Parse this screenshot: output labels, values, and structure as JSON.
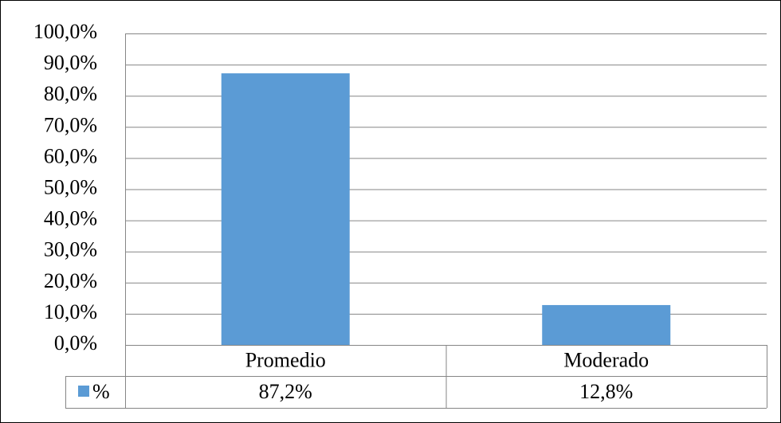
{
  "chart_data": {
    "type": "bar",
    "categories": [
      "Promedio",
      "Moderado"
    ],
    "series": [
      {
        "name": "%",
        "color": "#5b9bd5",
        "values": [
          87.2,
          12.8
        ],
        "value_labels": [
          "87,2%",
          "12,8%"
        ]
      }
    ],
    "ylim": [
      0,
      100
    ],
    "yticks": [
      {
        "value": 0,
        "label": "0,0%"
      },
      {
        "value": 10,
        "label": "10,0%"
      },
      {
        "value": 20,
        "label": "20,0%"
      },
      {
        "value": 30,
        "label": "30,0%"
      },
      {
        "value": 40,
        "label": "40,0%"
      },
      {
        "value": 50,
        "label": "50,0%"
      },
      {
        "value": 60,
        "label": "60,0%"
      },
      {
        "value": 70,
        "label": "70,0%"
      },
      {
        "value": 80,
        "label": "80,0%"
      },
      {
        "value": 90,
        "label": "90,0%"
      },
      {
        "value": 100,
        "label": "100,0%"
      }
    ],
    "grid": true,
    "data_table": true
  }
}
